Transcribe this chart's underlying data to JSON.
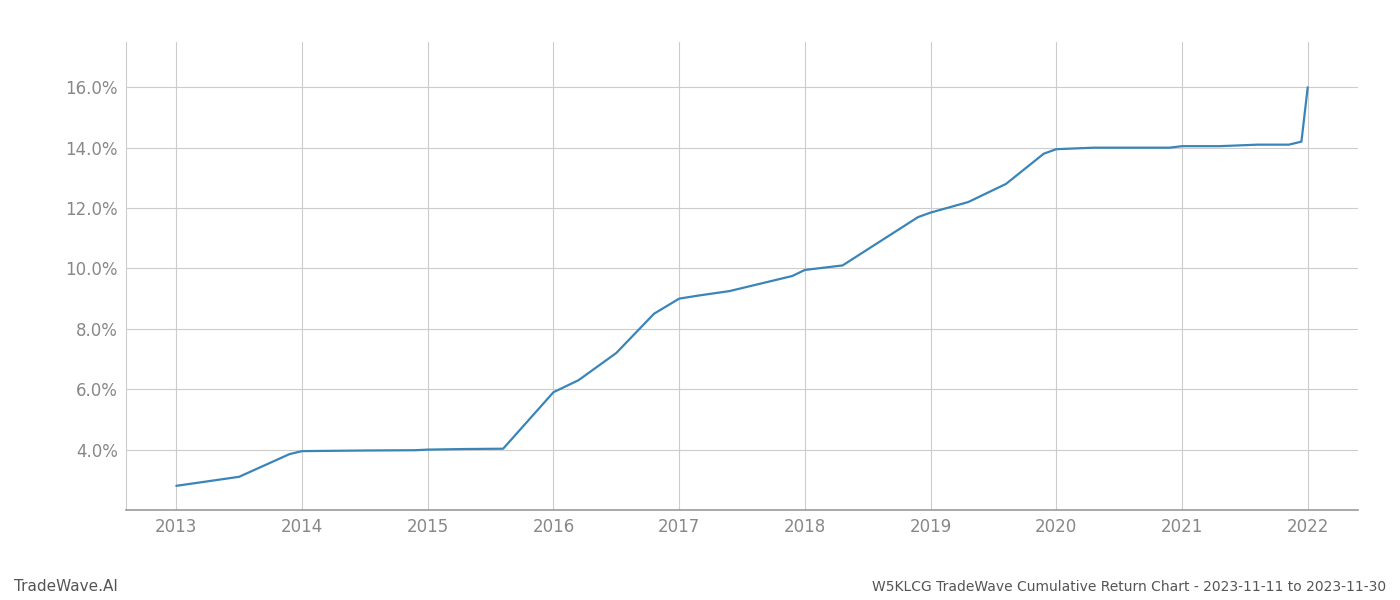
{
  "x": [
    2013.0,
    2013.5,
    2013.9,
    2014.0,
    2014.5,
    2014.9,
    2015.0,
    2015.3,
    2015.6,
    2016.0,
    2016.2,
    2016.5,
    2016.8,
    2017.0,
    2017.15,
    2017.4,
    2017.7,
    2017.9,
    2018.0,
    2018.3,
    2018.6,
    2018.9,
    2019.0,
    2019.3,
    2019.6,
    2019.9,
    2020.0,
    2020.3,
    2020.6,
    2020.9,
    2021.0,
    2021.3,
    2021.6,
    2021.85,
    2021.95,
    2022.0
  ],
  "y": [
    2.8,
    3.1,
    3.85,
    3.95,
    3.97,
    3.98,
    4.0,
    4.02,
    4.03,
    5.9,
    6.3,
    7.2,
    8.5,
    9.0,
    9.1,
    9.25,
    9.55,
    9.75,
    9.95,
    10.1,
    10.9,
    11.7,
    11.85,
    12.2,
    12.8,
    13.8,
    13.95,
    14.0,
    14.0,
    14.0,
    14.05,
    14.05,
    14.1,
    14.1,
    14.2,
    16.0
  ],
  "line_color": "#3a85b8",
  "line_width": 1.6,
  "bg_color": "#ffffff",
  "grid_color": "#cccccc",
  "tick_color": "#888888",
  "bottom_left_text": "TradeWave.AI",
  "bottom_right_text": "W5KLCG TradeWave Cumulative Return Chart - 2023-11-11 to 2023-11-30",
  "xlim": [
    2012.6,
    2022.4
  ],
  "ylim": [
    2.0,
    17.5
  ],
  "yticks": [
    4.0,
    6.0,
    8.0,
    10.0,
    12.0,
    14.0,
    16.0
  ],
  "xticks": [
    2013,
    2014,
    2015,
    2016,
    2017,
    2018,
    2019,
    2020,
    2021,
    2022
  ],
  "figsize": [
    14.0,
    6.0
  ],
  "dpi": 100
}
